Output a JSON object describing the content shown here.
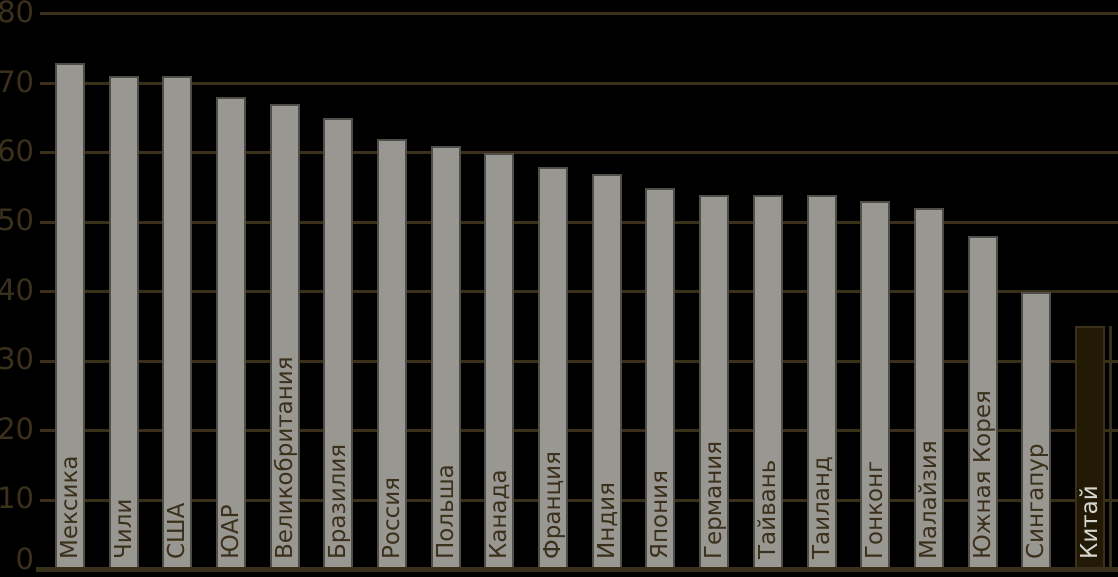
{
  "chart_data": {
    "type": "bar",
    "categories": [
      "Мексика",
      "Чили",
      "США",
      "ЮАР",
      "Великобритания",
      "Бразилия",
      "Россия",
      "Польша",
      "Канада",
      "Франция",
      "Индия",
      "Япония",
      "Германия",
      "Тайвань",
      "Таиланд",
      "Гонконг",
      "Малайзия",
      "Южная Корея",
      "Сингапур",
      "Китай"
    ],
    "values": [
      73,
      71,
      71,
      68,
      67,
      65,
      62,
      61,
      60,
      58,
      57,
      55,
      54,
      54,
      54,
      53,
      52,
      48,
      40,
      35
    ],
    "highlight_category": "Китай",
    "title": "",
    "xlabel": "",
    "ylabel": "",
    "ylim": [
      0,
      80
    ],
    "yticks": [
      0,
      10,
      20,
      30,
      40,
      50,
      60,
      70,
      80
    ],
    "grid": true,
    "legend": false
  },
  "colors": {
    "background": "#000000",
    "bar_fill": "#999792",
    "bar_border": "#4f4d48",
    "highlight_fill": "#221a05",
    "highlight_border": "#3b3118",
    "gridline": "#3a3019",
    "baseline": "#38301a",
    "axis_text": "#3b301b",
    "label_text": "#3b301b",
    "highlight_label_text": "#d6d6d1"
  }
}
